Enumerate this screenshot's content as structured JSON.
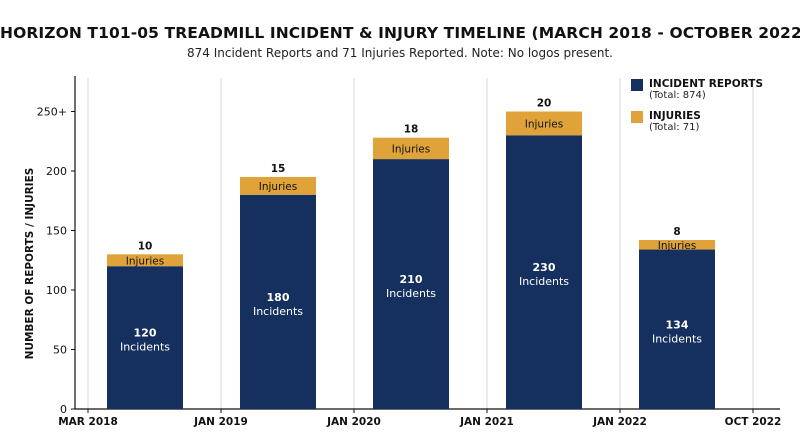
{
  "title": "HORIZON T101-05 TREADMILL INCIDENT & INJURY TIMELINE (MARCH 2018 - OCTOBER 2022)",
  "subtitle": "874 Incident Reports and 71 Injuries Reported. Note: No logos present.",
  "colors": {
    "incidents": "#15305e",
    "injuries": "#e0a33a",
    "grid": "#d9d9d9",
    "axis": "#111111"
  },
  "legend": [
    {
      "name": "INCIDENT REPORTS",
      "sub": "(Total: 874)"
    },
    {
      "name": "INJURIES",
      "sub": "(Total: 71)"
    }
  ],
  "chart_data": {
    "type": "bar",
    "stacked": true,
    "title": "HORIZON T101-05 TREADMILL INCIDENT & INJURY TIMELINE (MARCH 2018 - OCTOBER 2022)",
    "ylabel": "NUMBER OF REPORTS / INJURIES",
    "ylim": [
      0,
      275
    ],
    "yticks": [
      0,
      50,
      100,
      150,
      200,
      250
    ],
    "ytick_labels": [
      "0",
      "50",
      "100",
      "150",
      "200",
      "250+"
    ],
    "x_axis_labels": [
      "MAR 2018",
      "JAN 2019",
      "JAN 2020",
      "JAN 2021",
      "JAN 2022",
      "OCT 2022"
    ],
    "grid": "vertical",
    "legend_position": "top-right",
    "series": [
      {
        "name": "INCIDENT REPORTS",
        "values": [
          120,
          180,
          210,
          230,
          134
        ],
        "labels": [
          "120",
          "180",
          "210",
          "230",
          "134"
        ],
        "sublabel": "Incidents"
      },
      {
        "name": "INJURIES",
        "values": [
          10,
          15,
          18,
          20,
          8
        ],
        "labels": [
          "10",
          "15",
          "18",
          "20",
          "8"
        ],
        "segment_label": "Injuries"
      }
    ]
  }
}
